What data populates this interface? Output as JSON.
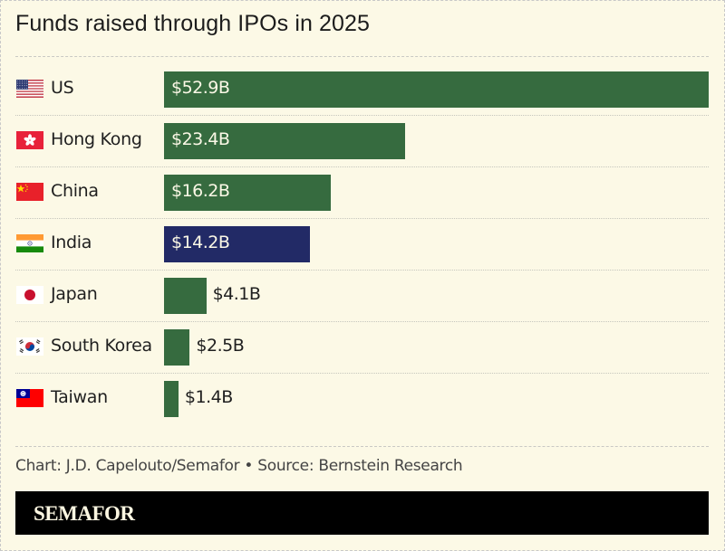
{
  "chart_data": {
    "type": "bar",
    "orientation": "horizontal",
    "title": "Funds raised through IPOs in 2025",
    "categories": [
      "US",
      "Hong Kong",
      "China",
      "India",
      "Japan",
      "South Korea",
      "Taiwan"
    ],
    "values": [
      52.9,
      23.4,
      16.2,
      14.2,
      4.1,
      2.5,
      1.4
    ],
    "value_labels": [
      "$52.9B",
      "$23.4B",
      "$16.2B",
      "$14.2B",
      "$4.1B",
      "$2.5B",
      "$1.4B"
    ],
    "unit": "USD billions",
    "highlight": "India",
    "colors": {
      "default": "#366b3f",
      "highlight": "#222a66"
    },
    "xlabel": "",
    "ylabel": "",
    "xlim": [
      0,
      52.9
    ],
    "grid": false,
    "legend": "none",
    "flags": [
      "us-flag",
      "hong-kong-flag",
      "china-flag",
      "india-flag",
      "japan-flag",
      "south-korea-flag",
      "taiwan-flag"
    ]
  },
  "footer": {
    "credit": "Chart: J.D. Capelouto/Semafor • Source: Bernstein Research",
    "brand": "SEMAFOR"
  }
}
